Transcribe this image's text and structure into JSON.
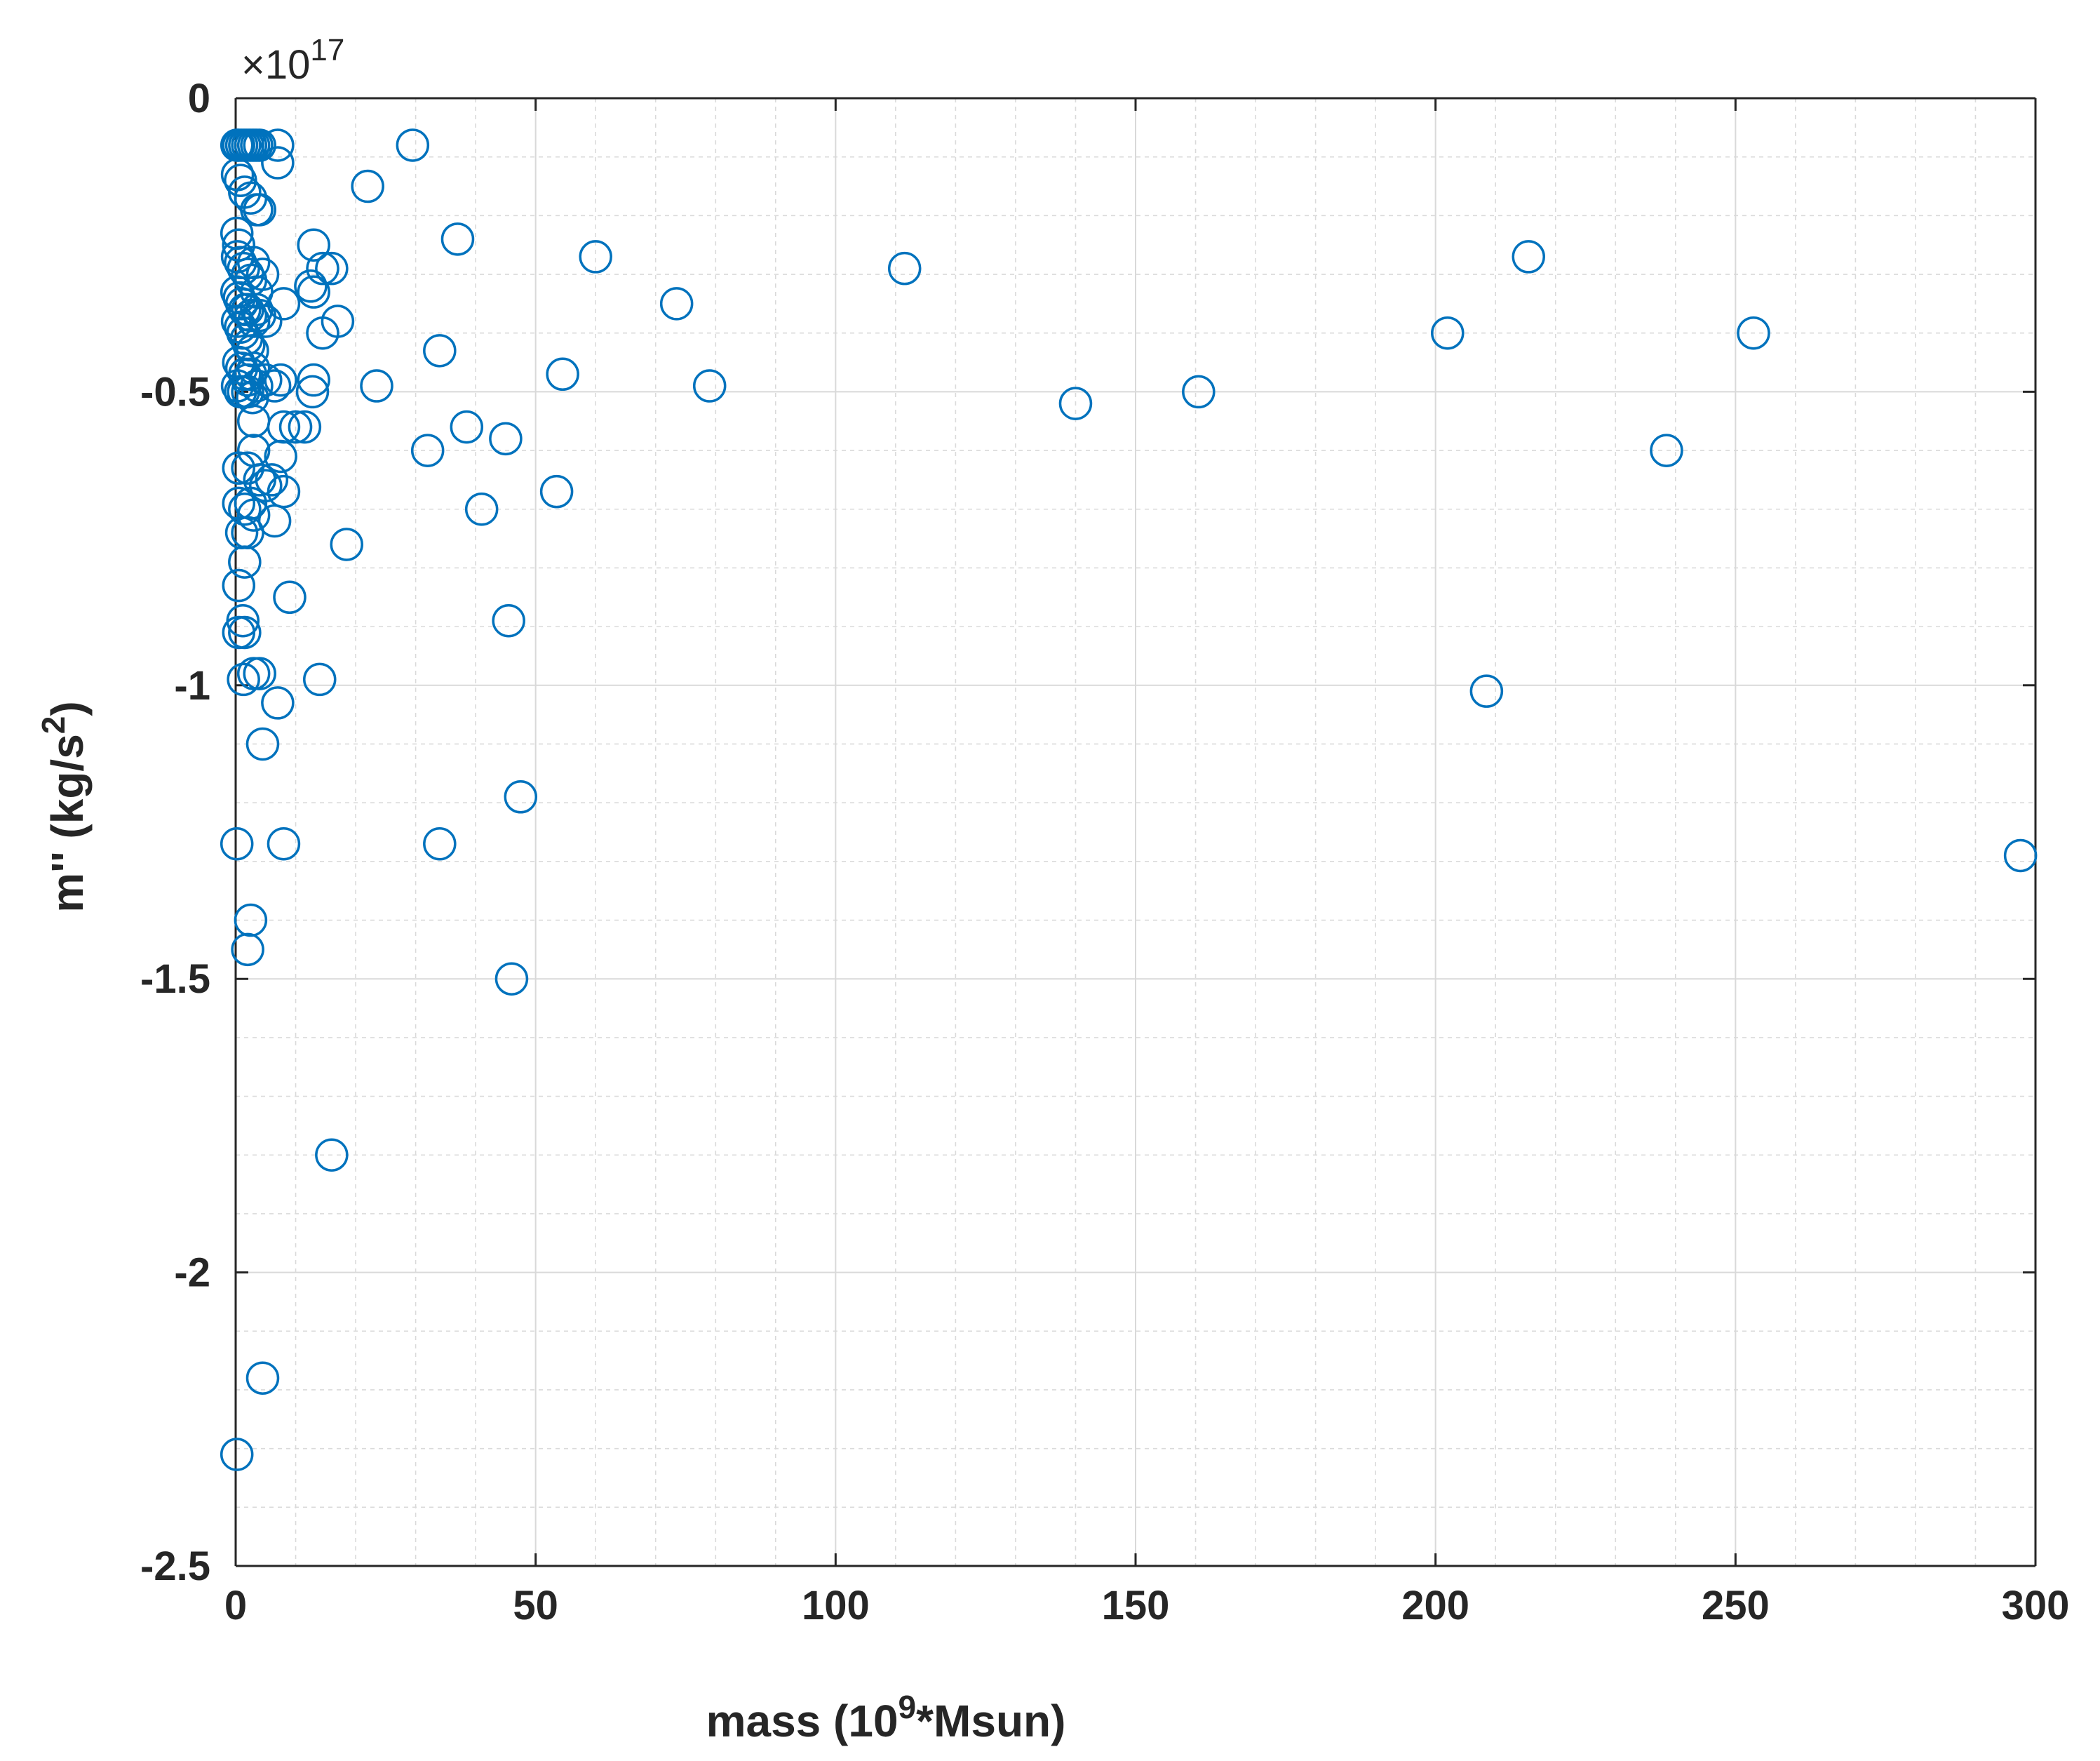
{
  "chart_data": {
    "type": "scatter",
    "xlabel_main": "mass (10",
    "xlabel_sup": "9",
    "xlabel_tail": "*Msun)",
    "ylabel_main": "m'' (kg/s",
    "ylabel_sup": "2",
    "ylabel_tail": ")",
    "y_exponent_prefix": "×10",
    "y_exponent_power": "17",
    "xlim": [
      0,
      300
    ],
    "ylim": [
      -2.5,
      0
    ],
    "x_ticks": [
      0,
      50,
      100,
      150,
      200,
      250,
      300
    ],
    "x_tick_labels": [
      "0",
      "50",
      "100",
      "150",
      "200",
      "250",
      "300"
    ],
    "y_ticks": [
      0,
      -0.5,
      -1,
      -1.5,
      -2,
      -2.5
    ],
    "y_tick_labels": [
      "0",
      "-0.5",
      "-1",
      "-1.5",
      "-2",
      "-2.5"
    ],
    "grid": true,
    "minor_grid": true,
    "marker": "open-circle",
    "color": "#0072bd",
    "series": [
      {
        "points": [
          [
            0.2,
            -0.08
          ],
          [
            0.5,
            -0.08
          ],
          [
            1.0,
            -0.08
          ],
          [
            1.5,
            -0.08
          ],
          [
            2.0,
            -0.08
          ],
          [
            2.5,
            -0.08
          ],
          [
            3.0,
            -0.08
          ],
          [
            3.5,
            -0.08
          ],
          [
            4.0,
            -0.08
          ],
          [
            7.0,
            -0.08
          ],
          [
            7.0,
            -0.11
          ],
          [
            0.3,
            -0.13
          ],
          [
            0.8,
            -0.14
          ],
          [
            1.5,
            -0.16
          ],
          [
            2.5,
            -0.17
          ],
          [
            3.5,
            -0.19
          ],
          [
            4.0,
            -0.19
          ],
          [
            0.2,
            -0.23
          ],
          [
            0.5,
            -0.25
          ],
          [
            0.3,
            -0.27
          ],
          [
            0.8,
            -0.28
          ],
          [
            1.3,
            -0.29
          ],
          [
            2.0,
            -0.3
          ],
          [
            2.5,
            -0.31
          ],
          [
            3.0,
            -0.28
          ],
          [
            4.5,
            -0.3
          ],
          [
            3.5,
            -0.33
          ],
          [
            0.2,
            -0.33
          ],
          [
            0.6,
            -0.34
          ],
          [
            1.0,
            -0.35
          ],
          [
            1.5,
            -0.36
          ],
          [
            2.0,
            -0.36
          ],
          [
            2.5,
            -0.37
          ],
          [
            3.0,
            -0.38
          ],
          [
            3.5,
            -0.36
          ],
          [
            4.0,
            -0.37
          ],
          [
            5.0,
            -0.38
          ],
          [
            8.0,
            -0.35
          ],
          [
            0.3,
            -0.38
          ],
          [
            0.8,
            -0.39
          ],
          [
            1.2,
            -0.4
          ],
          [
            1.8,
            -0.41
          ],
          [
            2.2,
            -0.42
          ],
          [
            2.8,
            -0.43
          ],
          [
            0.5,
            -0.45
          ],
          [
            1.0,
            -0.46
          ],
          [
            1.5,
            -0.47
          ],
          [
            2.0,
            -0.48
          ],
          [
            2.5,
            -0.47
          ],
          [
            3.0,
            -0.46
          ],
          [
            0.3,
            -0.49
          ],
          [
            0.8,
            -0.5
          ],
          [
            1.3,
            -0.5
          ],
          [
            2.0,
            -0.5
          ],
          [
            2.8,
            -0.51
          ],
          [
            3.5,
            -0.49
          ],
          [
            5.0,
            -0.48
          ],
          [
            6.5,
            -0.49
          ],
          [
            7.5,
            -0.48
          ],
          [
            3.0,
            -0.55
          ],
          [
            8.0,
            -0.56
          ],
          [
            10.0,
            -0.56
          ],
          [
            11.5,
            -0.56
          ],
          [
            0.5,
            -0.63
          ],
          [
            2.0,
            -0.63
          ],
          [
            3.0,
            -0.6
          ],
          [
            4.0,
            -0.65
          ],
          [
            6.0,
            -0.65
          ],
          [
            7.5,
            -0.61
          ],
          [
            8.0,
            -0.67
          ],
          [
            5.0,
            -0.66
          ],
          [
            0.5,
            -0.69
          ],
          [
            1.5,
            -0.7
          ],
          [
            2.5,
            -0.69
          ],
          [
            1.0,
            -0.74
          ],
          [
            2.0,
            -0.74
          ],
          [
            3.0,
            -0.71
          ],
          [
            6.5,
            -0.72
          ],
          [
            1.5,
            -0.79
          ],
          [
            0.5,
            -0.83
          ],
          [
            9.0,
            -0.85
          ],
          [
            1.2,
            -0.89
          ],
          [
            0.5,
            -0.91
          ],
          [
            1.5,
            -0.91
          ],
          [
            1.3,
            -0.99
          ],
          [
            3.0,
            -0.98
          ],
          [
            4.0,
            -0.98
          ],
          [
            7.0,
            -1.03
          ],
          [
            4.5,
            -1.1
          ],
          [
            0.2,
            -1.27
          ],
          [
            8.0,
            -1.27
          ],
          [
            2.5,
            -1.4
          ],
          [
            2.0,
            -1.45
          ],
          [
            16.0,
            -1.8
          ],
          [
            4.5,
            -2.18
          ],
          [
            0.2,
            -2.31
          ],
          [
            13.0,
            -0.25
          ],
          [
            14.5,
            -0.29
          ],
          [
            16.0,
            -0.29
          ],
          [
            12.5,
            -0.32
          ],
          [
            13.0,
            -0.33
          ],
          [
            14.5,
            -0.4
          ],
          [
            17.0,
            -0.38
          ],
          [
            13.0,
            -0.48
          ],
          [
            12.8,
            -0.5
          ],
          [
            18.5,
            -0.76
          ],
          [
            14.0,
            -0.99
          ],
          [
            22.0,
            -0.15
          ],
          [
            29.5,
            -0.08
          ],
          [
            23.5,
            -0.49
          ],
          [
            32.0,
            -0.6
          ],
          [
            37.0,
            -0.24
          ],
          [
            34.0,
            -0.43
          ],
          [
            38.5,
            -0.56
          ],
          [
            45.0,
            -0.58
          ],
          [
            41.0,
            -0.7
          ],
          [
            45.5,
            -0.89
          ],
          [
            34.0,
            -1.27
          ],
          [
            47.5,
            -1.19
          ],
          [
            46.0,
            -1.5
          ],
          [
            60.0,
            -0.27
          ],
          [
            54.5,
            -0.47
          ],
          [
            53.5,
            -0.67
          ],
          [
            73.5,
            -0.35
          ],
          [
            79.0,
            -0.49
          ],
          [
            111.5,
            -0.29
          ],
          [
            140.0,
            -0.52
          ],
          [
            160.5,
            -0.5
          ],
          [
            202.0,
            -0.4
          ],
          [
            215.5,
            -0.27
          ],
          [
            208.5,
            -1.01
          ],
          [
            238.5,
            -0.6
          ],
          [
            253.0,
            -0.4
          ],
          [
            297.5,
            -1.29
          ]
        ]
      }
    ]
  }
}
